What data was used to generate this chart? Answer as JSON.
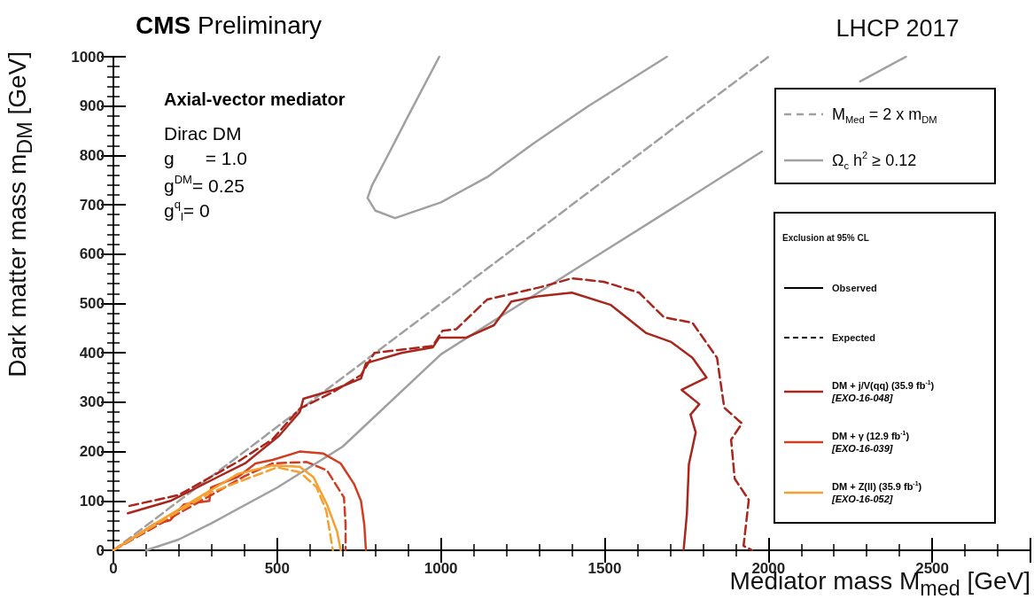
{
  "chart_data": {
    "type": "line",
    "title": "CMS Preliminary",
    "subtitle": "LHCP 2017",
    "xlabel": "Mediator mass M$_{med}$ [GeV]",
    "ylabel": "Dark matter mass m$_{DM}$ [GeV]",
    "legend_title": "Exclusion at 95% CL",
    "annotations": [
      "Axial-vector mediator",
      "Dirac DM",
      "g      = 1.0",
      "g$^{DM}$= 0.25",
      "g$^{q}$$_{l}$= 0",
      "Observed",
      "Expected"
    ],
    "xlim": [
      0,
      2800
    ],
    "xticks": [
      0,
      500,
      1000,
      1500,
      2000,
      2500
    ],
    "ylim": [
      0,
      1000
    ],
    "yticks": [
      0,
      100,
      200,
      300,
      400,
      500,
      600,
      700,
      800,
      900,
      1000
    ],
    "grid": false,
    "legend": "right",
    "marker": "none",
    "series": [
      {
        "name": "M$_{Med}$ = 2 x m$_{DM}$",
        "color": "#a0a0a0",
        "line_style": "dashed",
        "x": [
          0,
          2000
        ],
        "values": [
          0,
          1000
        ]
      },
      {
        "name": "Ω$_{c}$ h$^{2}$ ≥ 0.12",
        "color": "#a0a0a0",
        "line_style": "solid",
        "x": [
          100,
          200,
          300,
          500,
          700,
          1000,
          1400,
          1700,
          1980,
          2020,
          2280,
          2420
        ],
        "values": [
          0,
          22,
          55,
          127,
          210,
          397,
          565,
          690,
          808,
          null,
          950,
          1000
        ]
      },
      {
        "color": "#a0a0a0",
        "line_style": "solid",
        "x": [
          995,
          900,
          830,
          790,
          776,
          800,
          860,
          1000,
          1141,
          1284,
          1450,
          1690
        ],
        "values": [
          1000,
          880,
          790,
          740,
          714,
          688,
          673,
          705,
          756,
          825,
          900,
          1000
        ]
      },
      {
        "name": "DM + j/V(qq) (35.9 fb$^{-1}$)\n[EXO-16-048]",
        "color": "#a8261c",
        "line_style": "solid",
        "x": [
          44,
          174,
          320,
          402,
          506,
          569,
          580,
          672,
          756,
          771,
          880,
          975,
          995,
          1078,
          1162,
          1215,
          1300,
          1400,
          1519,
          1627,
          1703,
          1768,
          1811,
          1735,
          1789,
          1762,
          1778,
          1757,
          1751,
          1741
        ],
        "values": [
          75,
          100,
          149,
          176,
          232,
          280,
          307,
          325,
          348,
          379,
          400,
          411,
          431,
          431,
          456,
          504,
          515,
          522,
          497,
          440,
          422,
          390,
          350,
          325,
          296,
          275,
          239,
          174,
          74,
          0
        ]
      },
      {
        "color": "#a8261c",
        "line_style": "dashed",
        "x": [
          49,
          200,
          381,
          486,
          569,
          672,
          756,
          797,
          975,
          1005,
          1047,
          1141,
          1303,
          1400,
          1497,
          1605,
          1681,
          1768,
          1843,
          1865,
          1919,
          1886,
          1897,
          1940,
          1924,
          1951
        ],
        "values": [
          90,
          112,
          180,
          225,
          287,
          321,
          355,
          400,
          414,
          445,
          448,
          508,
          533,
          551,
          544,
          522,
          472,
          461,
          390,
          289,
          257,
          224,
          145,
          102,
          9,
          0
        ]
      },
      {
        "name": "DM + γ (12.9 fb$^{-1}$)\n[EXO-16-039]",
        "color": "#d23c20",
        "line_style": "solid",
        "x": [
          0,
          91,
          122,
          174,
          215,
          293,
          298,
          381,
          434,
          486,
          569,
          641,
          694,
          735,
          756,
          766,
          771
        ],
        "values": [
          0,
          38,
          52,
          61,
          93,
          100,
          127,
          149,
          176,
          183,
          200,
          196,
          176,
          134,
          100,
          52,
          0
        ]
      },
      {
        "color": "#d23c20",
        "line_style": "dashed",
        "x": [
          0,
          200,
          400,
          486,
          590,
          652,
          704,
          709,
          709
        ],
        "values": [
          0,
          75,
          150,
          176,
          179,
          162,
          107,
          52,
          0
        ]
      },
      {
        "name": "DM + Z(ll) (35.9 fb$^{-1}$)\n[EXO-16-052]",
        "color": "#f5a030",
        "line_style": "solid",
        "x": [
          0,
          122,
          293,
          381,
          486,
          569,
          611,
          652,
          683,
          694
        ],
        "values": [
          0,
          52,
          120,
          155,
          172,
          169,
          148,
          93,
          38,
          0
        ]
      },
      {
        "color": "#f5a030",
        "line_style": "dashed",
        "x": [
          0,
          150,
          300,
          500,
          570,
          620,
          650,
          670
        ],
        "values": [
          0,
          60,
          118,
          168,
          158,
          128,
          80,
          0
        ]
      }
    ]
  }
}
